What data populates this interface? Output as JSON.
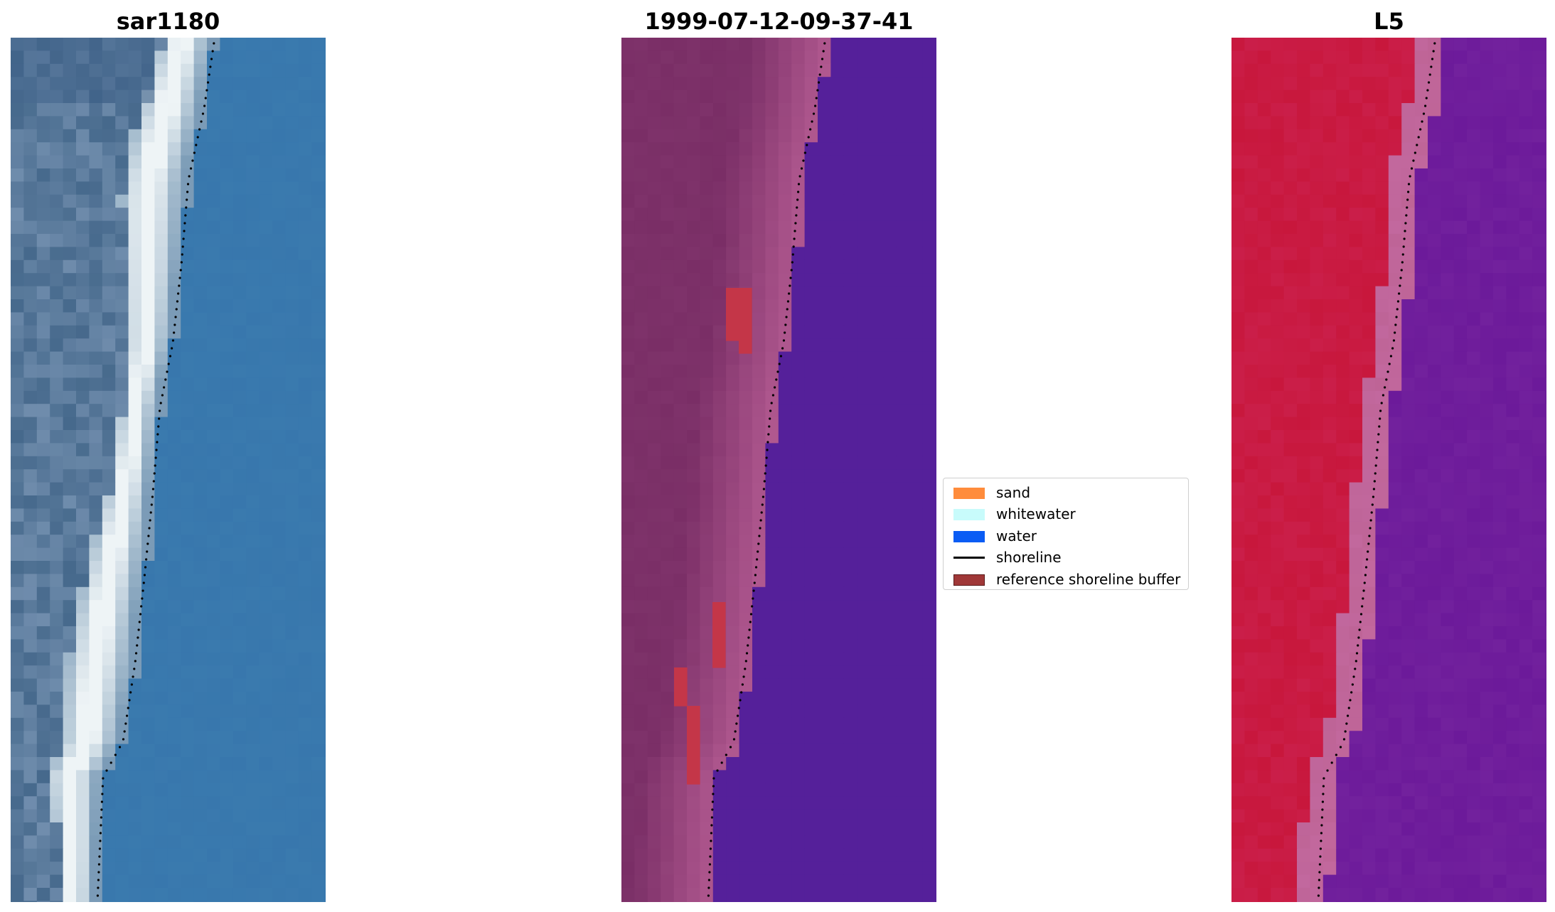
{
  "panels": [
    {
      "title": "sar1180",
      "kind": "rgb"
    },
    {
      "title": "1999-07-12-09-37-41",
      "kind": "classified"
    },
    {
      "title": "L5",
      "kind": "index"
    }
  ],
  "legend": {
    "items": [
      {
        "label": "sand",
        "color": "#ff8c3c",
        "type": "patch",
        "icon": "orange-patch"
      },
      {
        "label": "whitewater",
        "color": "#c8fbfb",
        "type": "patch",
        "icon": "light-cyan-patch"
      },
      {
        "label": "water",
        "color": "#0a5cf4",
        "type": "patch",
        "icon": "blue-patch"
      },
      {
        "label": "shoreline",
        "color": "#000000",
        "type": "line",
        "icon": "black-line"
      },
      {
        "label": "reference shoreline buffer",
        "color": "#a03838",
        "type": "patch",
        "icon": "dark-red-patch"
      }
    ]
  },
  "colors": {
    "water_rgb": "#3a7aae",
    "surf_white": "#eef4f6",
    "sand_purple": "#7a2e66",
    "water_class": "#55209a",
    "index_red": "#c8173c",
    "index_purple": "#6c1a9a",
    "buffer_red": "#c43648"
  }
}
